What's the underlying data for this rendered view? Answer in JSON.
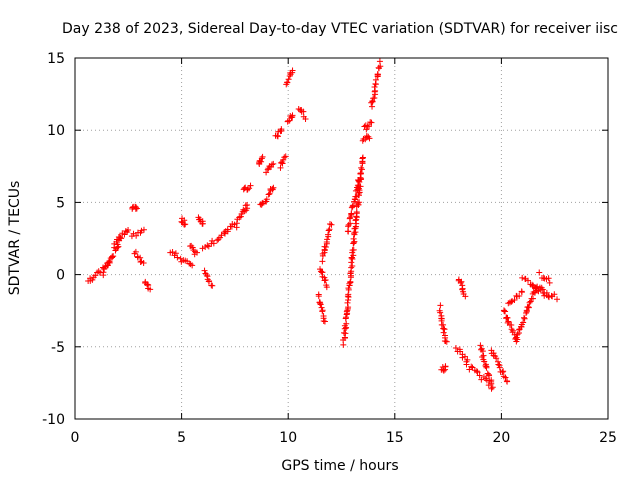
{
  "chart_data": {
    "type": "scatter",
    "title": "Day 238 of 2023, Sidereal Day-to-day VTEC variation (SDTVAR) for receiver iisc",
    "xlabel": "GPS time / hours",
    "ylabel": "SDTVAR / TECUs",
    "xlim": [
      0,
      25
    ],
    "ylim": [
      -10,
      15
    ],
    "xticks": [
      0,
      5,
      10,
      15,
      20,
      25
    ],
    "yticks": [
      -10,
      -5,
      0,
      5,
      10,
      15
    ],
    "grid": true,
    "marker": "+",
    "color": "#ff0000",
    "segments": [
      {
        "x0": 0.6,
        "x1": 1.6,
        "y0": -0.5,
        "y1": 0.8
      },
      {
        "x0": 1.3,
        "x1": 2.2,
        "y0": 0.0,
        "y1": 2.5
      },
      {
        "x0": 1.8,
        "x1": 2.5,
        "y0": 2.0,
        "y1": 3.2
      },
      {
        "x0": 2.7,
        "x1": 2.9,
        "y0": 4.6,
        "y1": 4.5
      },
      {
        "x0": 2.8,
        "x1": 3.2,
        "y0": 1.6,
        "y1": 0.7
      },
      {
        "x0": 2.7,
        "x1": 3.2,
        "y0": 2.6,
        "y1": 3.1
      },
      {
        "x0": 3.3,
        "x1": 3.5,
        "y0": -0.6,
        "y1": -0.9
      },
      {
        "x0": 4.5,
        "x1": 5.5,
        "y0": 1.6,
        "y1": 0.5
      },
      {
        "x0": 5.0,
        "x1": 5.2,
        "y0": 3.8,
        "y1": 3.4
      },
      {
        "x0": 5.4,
        "x1": 5.7,
        "y0": 2.0,
        "y1": 1.4
      },
      {
        "x0": 5.8,
        "x1": 6.0,
        "y0": 3.8,
        "y1": 3.5
      },
      {
        "x0": 6.1,
        "x1": 6.4,
        "y0": 0.3,
        "y1": -0.8
      },
      {
        "x0": 6.0,
        "x1": 7.0,
        "y0": 1.8,
        "y1": 2.7
      },
      {
        "x0": 7.0,
        "x1": 7.4,
        "y0": 2.8,
        "y1": 3.5
      },
      {
        "x0": 7.5,
        "x1": 7.8,
        "y0": 3.3,
        "y1": 4.1
      },
      {
        "x0": 7.9,
        "x1": 8.1,
        "y0": 4.5,
        "y1": 4.7
      },
      {
        "x0": 7.9,
        "x1": 8.2,
        "y0": 5.8,
        "y1": 6.2
      },
      {
        "x0": 8.6,
        "x1": 8.8,
        "y0": 7.6,
        "y1": 8.0
      },
      {
        "x0": 8.7,
        "x1": 9.0,
        "y0": 4.7,
        "y1": 5.1
      },
      {
        "x0": 9.0,
        "x1": 9.3,
        "y0": 7.1,
        "y1": 7.6
      },
      {
        "x0": 9.1,
        "x1": 9.3,
        "y0": 5.6,
        "y1": 6.1
      },
      {
        "x0": 9.4,
        "x1": 9.7,
        "y0": 9.5,
        "y1": 10.2
      },
      {
        "x0": 9.6,
        "x1": 9.9,
        "y0": 7.5,
        "y1": 8.1
      },
      {
        "x0": 9.9,
        "x1": 10.2,
        "y0": 13.1,
        "y1": 14.3
      },
      {
        "x0": 10.0,
        "x1": 10.2,
        "y0": 10.7,
        "y1": 11.0
      },
      {
        "x0": 10.5,
        "x1": 10.8,
        "y0": 11.6,
        "y1": 10.9
      },
      {
        "x0": 11.4,
        "x1": 11.7,
        "y0": -1.5,
        "y1": -3.2
      },
      {
        "x0": 11.5,
        "x1": 11.8,
        "y0": 0.5,
        "y1": -0.8
      },
      {
        "x0": 11.6,
        "x1": 12.0,
        "y0": 1.0,
        "y1": 3.5
      },
      {
        "x0": 12.6,
        "x1": 13.5,
        "y0": -4.8,
        "y1": 8.2
      },
      {
        "x0": 12.8,
        "x1": 13.4,
        "y0": 3.0,
        "y1": 7.0
      },
      {
        "x0": 13.5,
        "x1": 13.8,
        "y0": 9.3,
        "y1": 9.6
      },
      {
        "x0": 13.6,
        "x1": 13.9,
        "y0": 10.1,
        "y1": 10.5
      },
      {
        "x0": 13.9,
        "x1": 14.3,
        "y0": 11.6,
        "y1": 14.6
      },
      {
        "x0": 17.1,
        "x1": 17.4,
        "y0": -2.3,
        "y1": -4.8
      },
      {
        "x0": 17.2,
        "x1": 17.4,
        "y0": -6.5,
        "y1": -6.5
      },
      {
        "x0": 18.0,
        "x1": 18.3,
        "y0": -0.2,
        "y1": -1.5
      },
      {
        "x0": 17.9,
        "x1": 18.4,
        "y0": -5.1,
        "y1": -6.0
      },
      {
        "x0": 18.4,
        "x1": 19.4,
        "y0": -6.3,
        "y1": -7.5
      },
      {
        "x0": 19.0,
        "x1": 19.6,
        "y0": -5.0,
        "y1": -7.9
      },
      {
        "x0": 19.5,
        "x1": 20.3,
        "y0": -5.2,
        "y1": -7.4
      },
      {
        "x0": 20.1,
        "x1": 20.7,
        "y0": -2.4,
        "y1": -4.6
      },
      {
        "x0": 20.3,
        "x1": 21.0,
        "y0": -2.0,
        "y1": -1.2
      },
      {
        "x0": 20.7,
        "x1": 21.6,
        "y0": -4.5,
        "y1": -1.0
      },
      {
        "x0": 21.0,
        "x1": 22.2,
        "y0": -0.3,
        "y1": -1.5
      },
      {
        "x0": 21.5,
        "x1": 22.6,
        "y0": -0.8,
        "y1": -1.6
      },
      {
        "x0": 21.8,
        "x1": 22.3,
        "y0": 0.0,
        "y1": -0.5
      }
    ]
  }
}
